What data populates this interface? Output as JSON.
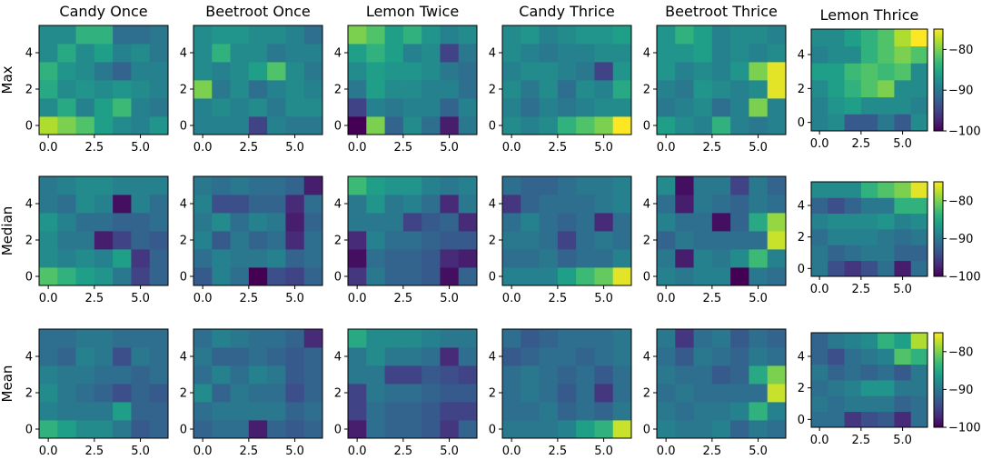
{
  "figure": {
    "colormap": "viridis",
    "colorbar": {
      "vmin": -100,
      "vmax": -75,
      "tick_values": [
        -80,
        -90,
        -100
      ],
      "tick_labels": [
        "−80",
        "−90",
        "−100"
      ]
    },
    "x_ticks": {
      "values": [
        0,
        2.5,
        5
      ],
      "labels": [
        "0.0",
        "2.5",
        "5.0"
      ]
    },
    "y_ticks": {
      "values": [
        0,
        2,
        4
      ],
      "labels": [
        "0",
        "2",
        "4"
      ]
    },
    "columns": [
      "Candy Once",
      "Beetroot Once",
      "Lemon Twice",
      "Candy Thrice",
      "Beetroot Thrice",
      "Lemon Thrice"
    ],
    "rows": [
      "Max",
      "Median",
      "Mean"
    ]
  },
  "chart_data": [
    {
      "type": "heatmap",
      "title": "Candy Once",
      "ylabel": "Max",
      "xlim": [
        -0.5,
        6.5
      ],
      "ylim": [
        -0.5,
        5.5
      ],
      "z": [
        [
          -78,
          -80,
          -82,
          -86,
          -88,
          -89,
          -87
        ],
        [
          -88,
          -85,
          -89,
          -86,
          -83,
          -89,
          -90
        ],
        [
          -85,
          -88,
          -87,
          -88,
          -87,
          -88,
          -89
        ],
        [
          -84,
          -87,
          -88,
          -90,
          -92,
          -89,
          -89
        ],
        [
          -88,
          -85,
          -88,
          -86,
          -89,
          -88,
          -90
        ],
        [
          -88,
          -88,
          -84,
          -84,
          -91,
          -91,
          -90
        ]
      ]
    },
    {
      "type": "heatmap",
      "title": "Beetroot Once",
      "xlim": [
        -0.5,
        6.5
      ],
      "ylim": [
        -0.5,
        5.5
      ],
      "z": [
        [
          -89,
          -89,
          -89,
          -95,
          -89,
          -90,
          -90
        ],
        [
          -89,
          -88,
          -89,
          -88,
          -90,
          -88,
          -88
        ],
        [
          -80,
          -90,
          -88,
          -91,
          -89,
          -88,
          -89
        ],
        [
          -88,
          -89,
          -88,
          -86,
          -82,
          -88,
          -90
        ],
        [
          -88,
          -84,
          -88,
          -88,
          -90,
          -89,
          -89
        ],
        [
          -88,
          -87,
          -87,
          -88,
          -88,
          -89,
          -91
        ]
      ]
    },
    {
      "type": "heatmap",
      "title": "Lemon Twice",
      "xlim": [
        -0.5,
        6.5
      ],
      "ylim": [
        -0.5,
        5.5
      ],
      "z": [
        [
          -100,
          -80,
          -92,
          -88,
          -91,
          -98,
          -90
        ],
        [
          -95,
          -89,
          -90,
          -89,
          -89,
          -92,
          -89
        ],
        [
          -90,
          -86,
          -88,
          -88,
          -89,
          -89,
          -91
        ],
        [
          -88,
          -86,
          -87,
          -87,
          -88,
          -90,
          -91
        ],
        [
          -86,
          -84,
          -86,
          -89,
          -88,
          -95,
          -90
        ],
        [
          -80,
          -82,
          -86,
          -84,
          -87,
          -89,
          -88
        ]
      ]
    },
    {
      "type": "heatmap",
      "title": "Candy Thrice",
      "xlim": [
        -0.5,
        6.5
      ],
      "ylim": [
        -0.5,
        5.5
      ],
      "z": [
        [
          -88,
          -89,
          -88,
          -84,
          -82,
          -80,
          -75
        ],
        [
          -89,
          -91,
          -89,
          -90,
          -89,
          -88,
          -88
        ],
        [
          -88,
          -90,
          -88,
          -91,
          -88,
          -89,
          -85
        ],
        [
          -89,
          -88,
          -88,
          -89,
          -90,
          -95,
          -87
        ],
        [
          -88,
          -89,
          -90,
          -89,
          -89,
          -88,
          -88
        ],
        [
          -88,
          -87,
          -89,
          -88,
          -87,
          -87,
          -86
        ]
      ]
    },
    {
      "type": "heatmap",
      "title": "Beetroot Thrice",
      "xlim": [
        -0.5,
        6.5
      ],
      "ylim": [
        -0.5,
        5.5
      ],
      "z": [
        [
          -86,
          -88,
          -89,
          -84,
          -89,
          -90,
          -89
        ],
        [
          -90,
          -89,
          -88,
          -91,
          -89,
          -80,
          -89
        ],
        [
          -89,
          -90,
          -87,
          -88,
          -89,
          -88,
          -76
        ],
        [
          -87,
          -89,
          -88,
          -89,
          -87,
          -80,
          -76
        ],
        [
          -87,
          -87,
          -86,
          -89,
          -88,
          -89,
          -88
        ],
        [
          -87,
          -84,
          -86,
          -89,
          -88,
          -88,
          -89
        ]
      ]
    },
    {
      "type": "heatmap",
      "title": "Lemon Thrice",
      "xlim": [
        -0.5,
        6.5
      ],
      "ylim": [
        -0.5,
        5.5
      ],
      "colorbar": true,
      "z": [
        [
          -89,
          -88,
          -93,
          -93,
          -90,
          -93,
          -88
        ],
        [
          -89,
          -87,
          -86,
          -88,
          -88,
          -88,
          -89
        ],
        [
          -88,
          -86,
          -84,
          -82,
          -80,
          -88,
          -88
        ],
        [
          -86,
          -86,
          -83,
          -82,
          -83,
          -82,
          -88
        ],
        [
          -89,
          -88,
          -88,
          -84,
          -82,
          -80,
          -82
        ],
        [
          -88,
          -88,
          -86,
          -84,
          -82,
          -78,
          -75
        ]
      ]
    },
    {
      "type": "heatmap",
      "title": "",
      "ylabel": "Median",
      "xlim": [
        -0.5,
        6.5
      ],
      "ylim": [
        -0.5,
        5.5
      ],
      "z": [
        [
          -82,
          -84,
          -86,
          -87,
          -90,
          -95,
          -92
        ],
        [
          -88,
          -89,
          -88,
          -89,
          -86,
          -96,
          -92
        ],
        [
          -88,
          -90,
          -90,
          -98,
          -95,
          -92,
          -93
        ],
        [
          -87,
          -89,
          -91,
          -91,
          -92,
          -92,
          -91
        ],
        [
          -90,
          -91,
          -88,
          -89,
          -99,
          -89,
          -91
        ],
        [
          -90,
          -89,
          -88,
          -88,
          -89,
          -89,
          -89
        ]
      ]
    },
    {
      "type": "heatmap",
      "title": "",
      "xlim": [
        -0.5,
        6.5
      ],
      "ylim": [
        -0.5,
        5.5
      ],
      "z": [
        [
          -93,
          -89,
          -91,
          -100,
          -94,
          -95,
          -92
        ],
        [
          -91,
          -89,
          -90,
          -90,
          -89,
          -92,
          -91
        ],
        [
          -89,
          -93,
          -90,
          -92,
          -91,
          -97,
          -91
        ],
        [
          -90,
          -88,
          -91,
          -89,
          -90,
          -98,
          -92
        ],
        [
          -89,
          -94,
          -94,
          -92,
          -92,
          -97,
          -91
        ],
        [
          -90,
          -91,
          -90,
          -91,
          -91,
          -92,
          -98
        ]
      ]
    },
    {
      "type": "heatmap",
      "title": "",
      "xlim": [
        -0.5,
        6.5
      ],
      "ylim": [
        -0.5,
        5.5
      ],
      "z": [
        [
          -96,
          -90,
          -92,
          -92,
          -93,
          -99,
          -92
        ],
        [
          -99,
          -91,
          -92,
          -92,
          -93,
          -97,
          -98
        ],
        [
          -97,
          -89,
          -91,
          -91,
          -92,
          -93,
          -93
        ],
        [
          -90,
          -90,
          -90,
          -95,
          -93,
          -92,
          -97
        ],
        [
          -90,
          -87,
          -90,
          -89,
          -91,
          -97,
          -90
        ],
        [
          -83,
          -86,
          -87,
          -87,
          -89,
          -90,
          -89
        ]
      ]
    },
    {
      "type": "heatmap",
      "title": "",
      "xlim": [
        -0.5,
        6.5
      ],
      "ylim": [
        -0.5,
        5.5
      ],
      "z": [
        [
          -89,
          -89,
          -89,
          -86,
          -83,
          -81,
          -76
        ],
        [
          -91,
          -91,
          -90,
          -92,
          -91,
          -91,
          -89
        ],
        [
          -90,
          -90,
          -91,
          -95,
          -91,
          -90,
          -91
        ],
        [
          -91,
          -89,
          -91,
          -92,
          -91,
          -97,
          -91
        ],
        [
          -96,
          -92,
          -91,
          -91,
          -91,
          -90,
          -89
        ],
        [
          -91,
          -92,
          -92,
          -91,
          -90,
          -90,
          -89
        ]
      ]
    },
    {
      "type": "heatmap",
      "title": "",
      "xlim": [
        -0.5,
        6.5
      ],
      "ylim": [
        -0.5,
        5.5
      ],
      "z": [
        [
          -89,
          -90,
          -89,
          -89,
          -100,
          -90,
          -91
        ],
        [
          -90,
          -98,
          -89,
          -90,
          -88,
          -83,
          -89
        ],
        [
          -92,
          -90,
          -91,
          -91,
          -91,
          -91,
          -77
        ],
        [
          -89,
          -91,
          -91,
          -99,
          -92,
          -85,
          -79
        ],
        [
          -91,
          -98,
          -90,
          -91,
          -92,
          -90,
          -91
        ],
        [
          -88,
          -99,
          -90,
          -90,
          -95,
          -90,
          -92
        ]
      ]
    },
    {
      "type": "heatmap",
      "title": "",
      "xlim": [
        -0.5,
        6.5
      ],
      "ylim": [
        -0.5,
        5.5
      ],
      "colorbar": true,
      "z": [
        [
          -90,
          -94,
          -96,
          -94,
          -91,
          -98,
          -91
        ],
        [
          -90,
          -92,
          -91,
          -90,
          -90,
          -92,
          -92
        ],
        [
          -91,
          -89,
          -89,
          -89,
          -90,
          -91,
          -90
        ],
        [
          -89,
          -88,
          -88,
          -88,
          -87,
          -89,
          -88
        ],
        [
          -92,
          -94,
          -92,
          -90,
          -90,
          -84,
          -84
        ],
        [
          -88,
          -88,
          -88,
          -84,
          -82,
          -80,
          -76
        ]
      ]
    },
    {
      "type": "heatmap",
      "title": "",
      "ylabel": "Mean",
      "xlim": [
        -0.5,
        6.5
      ],
      "ylim": [
        -0.5,
        5.5
      ],
      "z": [
        [
          -84,
          -86,
          -88,
          -88,
          -90,
          -93,
          -92
        ],
        [
          -89,
          -90,
          -90,
          -90,
          -86,
          -92,
          -92
        ],
        [
          -88,
          -90,
          -91,
          -92,
          -94,
          -92,
          -93
        ],
        [
          -89,
          -90,
          -90,
          -91,
          -91,
          -92,
          -91
        ],
        [
          -91,
          -92,
          -89,
          -90,
          -94,
          -90,
          -91
        ],
        [
          -91,
          -91,
          -90,
          -90,
          -91,
          -91,
          -91
        ]
      ]
    },
    {
      "type": "heatmap",
      "title": "",
      "xlim": [
        -0.5,
        6.5
      ],
      "ylim": [
        -0.5,
        5.5
      ],
      "z": [
        [
          -92,
          -91,
          -91,
          -98,
          -92,
          -93,
          -92
        ],
        [
          -91,
          -90,
          -90,
          -90,
          -90,
          -92,
          -91
        ],
        [
          -88,
          -92,
          -90,
          -91,
          -91,
          -94,
          -92
        ],
        [
          -91,
          -89,
          -91,
          -89,
          -90,
          -93,
          -92
        ],
        [
          -90,
          -92,
          -92,
          -91,
          -92,
          -93,
          -92
        ],
        [
          -91,
          -89,
          -90,
          -91,
          -91,
          -92,
          -97
        ]
      ]
    },
    {
      "type": "heatmap",
      "title": "",
      "xlim": [
        -0.5,
        6.5
      ],
      "ylim": [
        -0.5,
        5.5
      ],
      "z": [
        [
          -98,
          -91,
          -92,
          -92,
          -93,
          -96,
          -92
        ],
        [
          -95,
          -91,
          -92,
          -92,
          -93,
          -95,
          -95
        ],
        [
          -95,
          -90,
          -91,
          -91,
          -92,
          -93,
          -93
        ],
        [
          -90,
          -90,
          -95,
          -95,
          -93,
          -94,
          -95
        ],
        [
          -90,
          -88,
          -90,
          -90,
          -91,
          -97,
          -91
        ],
        [
          -85,
          -88,
          -88,
          -88,
          -89,
          -90,
          -90
        ]
      ]
    },
    {
      "type": "heatmap",
      "title": "",
      "xlim": [
        -0.5,
        6.5
      ],
      "ylim": [
        -0.5,
        5.5
      ],
      "z": [
        [
          -90,
          -90,
          -90,
          -89,
          -86,
          -84,
          -77
        ],
        [
          -91,
          -91,
          -90,
          -92,
          -91,
          -92,
          -90
        ],
        [
          -91,
          -90,
          -91,
          -93,
          -91,
          -96,
          -91
        ],
        [
          -91,
          -90,
          -91,
          -92,
          -91,
          -93,
          -91
        ],
        [
          -93,
          -92,
          -91,
          -91,
          -92,
          -91,
          -90
        ],
        [
          -91,
          -93,
          -92,
          -91,
          -91,
          -91,
          -90
        ]
      ]
    },
    {
      "type": "heatmap",
      "title": "",
      "xlim": [
        -0.5,
        6.5
      ],
      "ylim": [
        -0.5,
        5.5
      ],
      "z": [
        [
          -89,
          -90,
          -90,
          -89,
          -92,
          -90,
          -91
        ],
        [
          -90,
          -91,
          -90,
          -90,
          -89,
          -84,
          -89
        ],
        [
          -91,
          -90,
          -91,
          -91,
          -91,
          -91,
          -77
        ],
        [
          -90,
          -91,
          -91,
          -93,
          -92,
          -85,
          -80
        ],
        [
          -91,
          -93,
          -90,
          -91,
          -92,
          -90,
          -91
        ],
        [
          -90,
          -96,
          -91,
          -90,
          -93,
          -91,
          -92
        ]
      ]
    },
    {
      "type": "heatmap",
      "title": "",
      "xlim": [
        -0.5,
        6.5
      ],
      "ylim": [
        -0.5,
        5.5
      ],
      "colorbar": true,
      "z": [
        [
          -91,
          -91,
          -96,
          -94,
          -93,
          -97,
          -91
        ],
        [
          -90,
          -91,
          -90,
          -90,
          -90,
          -92,
          -91
        ],
        [
          -91,
          -90,
          -89,
          -87,
          -87,
          -90,
          -90
        ],
        [
          -90,
          -92,
          -91,
          -92,
          -91,
          -93,
          -90
        ],
        [
          -92,
          -94,
          -91,
          -90,
          -89,
          -82,
          -84
        ],
        [
          -92,
          -90,
          -89,
          -88,
          -84,
          -86,
          -78
        ]
      ]
    }
  ]
}
